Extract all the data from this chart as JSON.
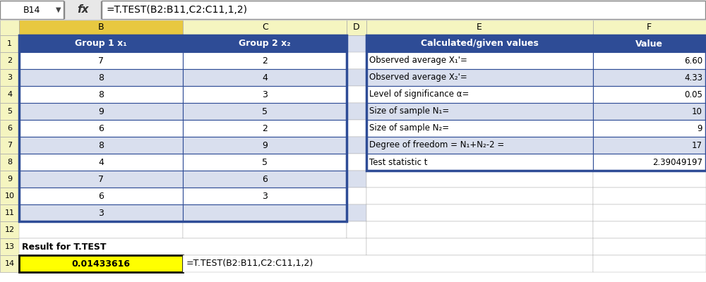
{
  "formula_bar_cell": "B14",
  "formula_bar_formula": "=T.TEST(B2:B11,C2:C11,1,2)",
  "group1_header": "Group 1 x₁",
  "group2_header": "Group 2 x₂",
  "group1_values": [
    7,
    8,
    8,
    9,
    6,
    8,
    4,
    7,
    6,
    3
  ],
  "group2_values": [
    2,
    4,
    3,
    5,
    2,
    9,
    5,
    6,
    3,
    null
  ],
  "calc_header": "Calculated/given values",
  "value_header": "Value",
  "calc_rows": [
    [
      "Observed average X₁'=",
      "6.60"
    ],
    [
      "Observed average X₂'=",
      "4.33"
    ],
    [
      "Level of significance α=",
      "0.05"
    ],
    [
      "Size of sample N₁=",
      "10"
    ],
    [
      "Size of sample N₂=",
      "9"
    ],
    [
      "Degree of freedom = N₁+N₂-2 =",
      "17"
    ],
    [
      "Test statistic t",
      "2.39049197"
    ]
  ],
  "result_label": "Result for T.TEST",
  "result_value": "0.01433616",
  "result_formula": "=T.TEST(B2:B11,C2:C11,1,2)",
  "header_bg": "#2E4C96",
  "header_fg": "#FFFFFF",
  "row_white_bg": "#FFFFFF",
  "row_blue_bg": "#D9DFEE",
  "col_header_bg": "#F5F5C0",
  "col_header_selected_bg": "#E8C840",
  "result_cell_bg": "#FFFF00",
  "border_dark": "#2E4C96",
  "border_gray": "#AAAAAA",
  "formula_bar_bg": "#E8E8E8",
  "top_bar_bg": "#D0D0D0",
  "white": "#FFFFFF"
}
